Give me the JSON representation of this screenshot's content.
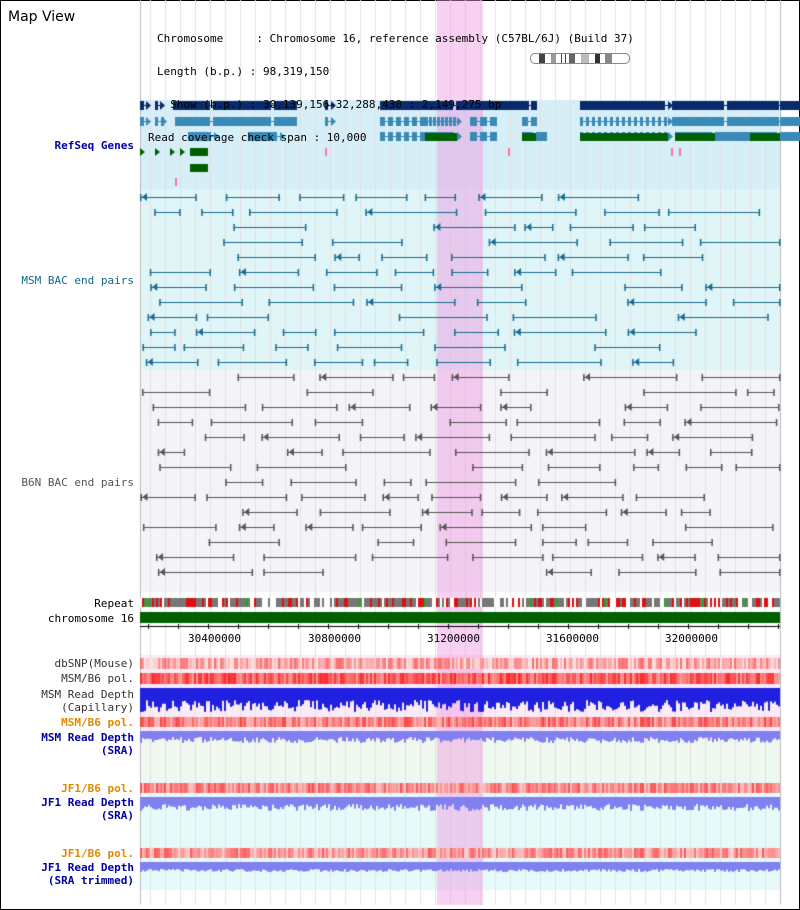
{
  "page": {
    "title": "Map View",
    "header_lines": [
      "Chromosome     : Chromosome 16, reference assembly (C57BL/6J) (Build 37)",
      "Length (b.p.) : 98,319,150",
      "  Show (b.p.) : 30,139,156-32,288,430 : 2,149,275 bp",
      "Read coverage check span : 10,000"
    ]
  },
  "tracks": {
    "refseq": "RefSeq Genes",
    "msm_bac": "MSM BAC end pairs",
    "b6n_bac": "B6N BAC end pairs",
    "repeat": "Repeat",
    "chromosome": "chromosome 16",
    "dbsnp": "dbSNP(Mouse)",
    "msm_b6_pol_1": "MSM/B6 pol.",
    "msm_read_depth_cap_1": "MSM Read Depth",
    "msm_read_depth_cap_2": "(Capillary)",
    "msm_b6_pol_2": "MSM/B6 pol.",
    "msm_read_depth_sra_1": "MSM Read Depth",
    "msm_read_depth_sra_2": "(SRA)",
    "jf1_b6_pol_1": "JF1/B6 pol.",
    "jf1_read_depth_sra_1": "JF1 Read Depth",
    "jf1_read_depth_sra_2": "(SRA)",
    "jf1_b6_pol_2": "JF1/B6 pol.",
    "jf1_read_depth_trim_1": "JF1 Read Depth",
    "jf1_read_depth_trim_2": "(SRA trimmed)"
  },
  "axis": {
    "ticks": [
      "30400000",
      "30800000",
      "31200000",
      "31600000",
      "32000000"
    ]
  },
  "colors": {
    "refseq_bg": "#d6eef8",
    "msm_bg": "#dff5f7",
    "b6n_bg": "#f4f4f8",
    "highlight": "#f6cdf0",
    "gene_dark": "#0a2a6a",
    "gene_mid": "#3a8ab8",
    "gene_green": "#006000",
    "msm_line": "#1a6a90",
    "b6n_line": "#555555",
    "chromosome": "#006000",
    "depth_blue": "#2020e0",
    "depth_light": "#8080f0",
    "pol_red": "#f03030"
  }
}
